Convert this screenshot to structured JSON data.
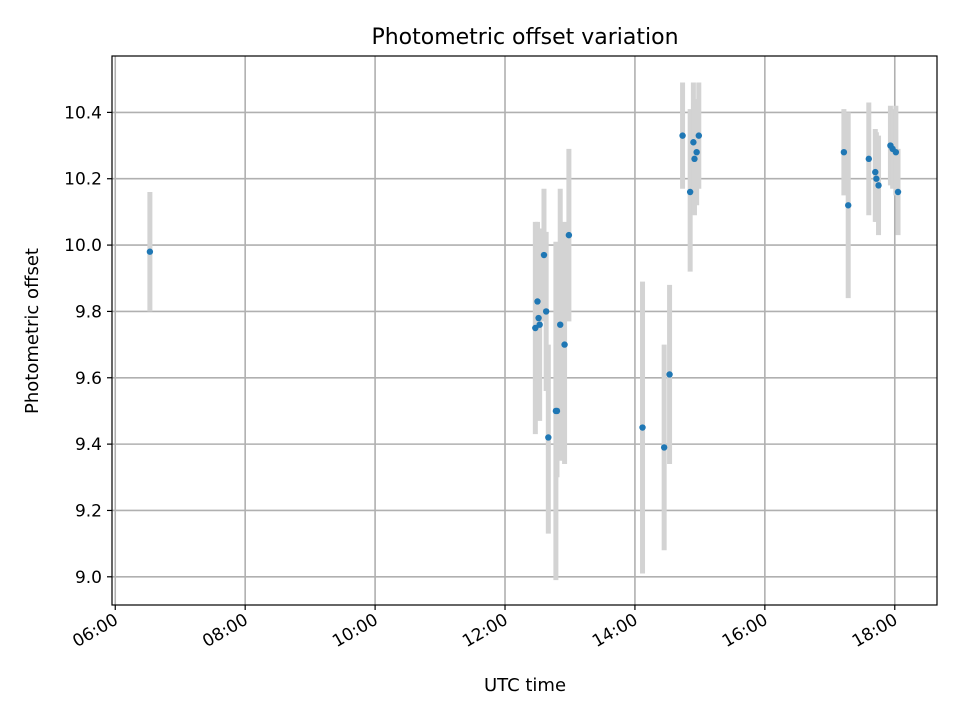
{
  "chart_data": {
    "type": "scatter",
    "title": "Photometric offset variation",
    "xlabel": "UTC time",
    "ylabel": "Photometric offset",
    "xlim_hours": [
      5.95,
      18.65
    ],
    "ylim": [
      8.915,
      10.57
    ],
    "grid": true,
    "x_ticks": [
      {
        "label": "06:00",
        "value": 6
      },
      {
        "label": "08:00",
        "value": 8
      },
      {
        "label": "10:00",
        "value": 10
      },
      {
        "label": "12:00",
        "value": 12
      },
      {
        "label": "14:00",
        "value": 14
      },
      {
        "label": "16:00",
        "value": 16
      },
      {
        "label": "18:00",
        "value": 18
      }
    ],
    "y_ticks": [
      {
        "label": "9.0",
        "value": 9.0
      },
      {
        "label": "9.2",
        "value": 9.2
      },
      {
        "label": "9.4",
        "value": 9.4
      },
      {
        "label": "9.6",
        "value": 9.6
      },
      {
        "label": "9.8",
        "value": 9.8
      },
      {
        "label": "10.0",
        "value": 10.0
      },
      {
        "label": "10.2",
        "value": 10.2
      },
      {
        "label": "10.4",
        "value": 10.4
      }
    ],
    "series": [
      {
        "marker_color": "#1f77b4",
        "errorbar_color": "#d3d3d3",
        "points": [
          {
            "x": "06:32",
            "y": 9.98,
            "ylow": 9.8,
            "yhigh": 10.16
          },
          {
            "x": "12:28",
            "y": 9.75,
            "ylow": 9.43,
            "yhigh": 10.07
          },
          {
            "x": "12:30",
            "y": 9.83,
            "ylow": 9.59,
            "yhigh": 10.07
          },
          {
            "x": "12:31",
            "y": 9.78,
            "ylow": 9.51,
            "yhigh": 10.05
          },
          {
            "x": "12:32",
            "y": 9.76,
            "ylow": 9.47,
            "yhigh": 10.05
          },
          {
            "x": "12:36",
            "y": 9.97,
            "ylow": 9.77,
            "yhigh": 10.17
          },
          {
            "x": "12:38",
            "y": 9.8,
            "ylow": 9.56,
            "yhigh": 10.04
          },
          {
            "x": "12:40",
            "y": 9.42,
            "ylow": 9.13,
            "yhigh": 9.7
          },
          {
            "x": "12:47",
            "y": 9.5,
            "ylow": 8.99,
            "yhigh": 10.01
          },
          {
            "x": "12:48",
            "y": 9.5,
            "ylow": 9.3,
            "yhigh": 9.7
          },
          {
            "x": "12:51",
            "y": 9.76,
            "ylow": 9.35,
            "yhigh": 10.17
          },
          {
            "x": "12:55",
            "y": 9.7,
            "ylow": 9.34,
            "yhigh": 10.07
          },
          {
            "x": "12:59",
            "y": 10.03,
            "ylow": 9.77,
            "yhigh": 10.29
          },
          {
            "x": "14:07",
            "y": 9.45,
            "ylow": 9.01,
            "yhigh": 9.89
          },
          {
            "x": "14:27",
            "y": 9.39,
            "ylow": 9.08,
            "yhigh": 9.7
          },
          {
            "x": "14:32",
            "y": 9.61,
            "ylow": 9.34,
            "yhigh": 9.88
          },
          {
            "x": "14:44",
            "y": 10.33,
            "ylow": 10.17,
            "yhigh": 10.49
          },
          {
            "x": "14:51",
            "y": 10.16,
            "ylow": 9.92,
            "yhigh": 10.41
          },
          {
            "x": "14:54",
            "y": 10.31,
            "ylow": 10.13,
            "yhigh": 10.49
          },
          {
            "x": "14:55",
            "y": 10.26,
            "ylow": 10.09,
            "yhigh": 10.43
          },
          {
            "x": "14:57",
            "y": 10.28,
            "ylow": 10.12,
            "yhigh": 10.44
          },
          {
            "x": "14:59",
            "y": 10.33,
            "ylow": 10.17,
            "yhigh": 10.49
          },
          {
            "x": "17:13",
            "y": 10.28,
            "ylow": 10.15,
            "yhigh": 10.41
          },
          {
            "x": "17:17",
            "y": 10.12,
            "ylow": 9.84,
            "yhigh": 10.4
          },
          {
            "x": "17:36",
            "y": 10.26,
            "ylow": 10.09,
            "yhigh": 10.43
          },
          {
            "x": "17:42",
            "y": 10.22,
            "ylow": 10.07,
            "yhigh": 10.35
          },
          {
            "x": "17:43",
            "y": 10.2,
            "ylow": 10.07,
            "yhigh": 10.34
          },
          {
            "x": "17:45",
            "y": 10.18,
            "ylow": 10.03,
            "yhigh": 10.33
          },
          {
            "x": "17:56",
            "y": 10.3,
            "ylow": 10.18,
            "yhigh": 10.42
          },
          {
            "x": "17:58",
            "y": 10.29,
            "ylow": 10.17,
            "yhigh": 10.41
          },
          {
            "x": "18:01",
            "y": 10.28,
            "ylow": 10.15,
            "yhigh": 10.42
          },
          {
            "x": "18:03",
            "y": 10.16,
            "ylow": 10.03,
            "yhigh": 10.29
          }
        ]
      }
    ]
  }
}
